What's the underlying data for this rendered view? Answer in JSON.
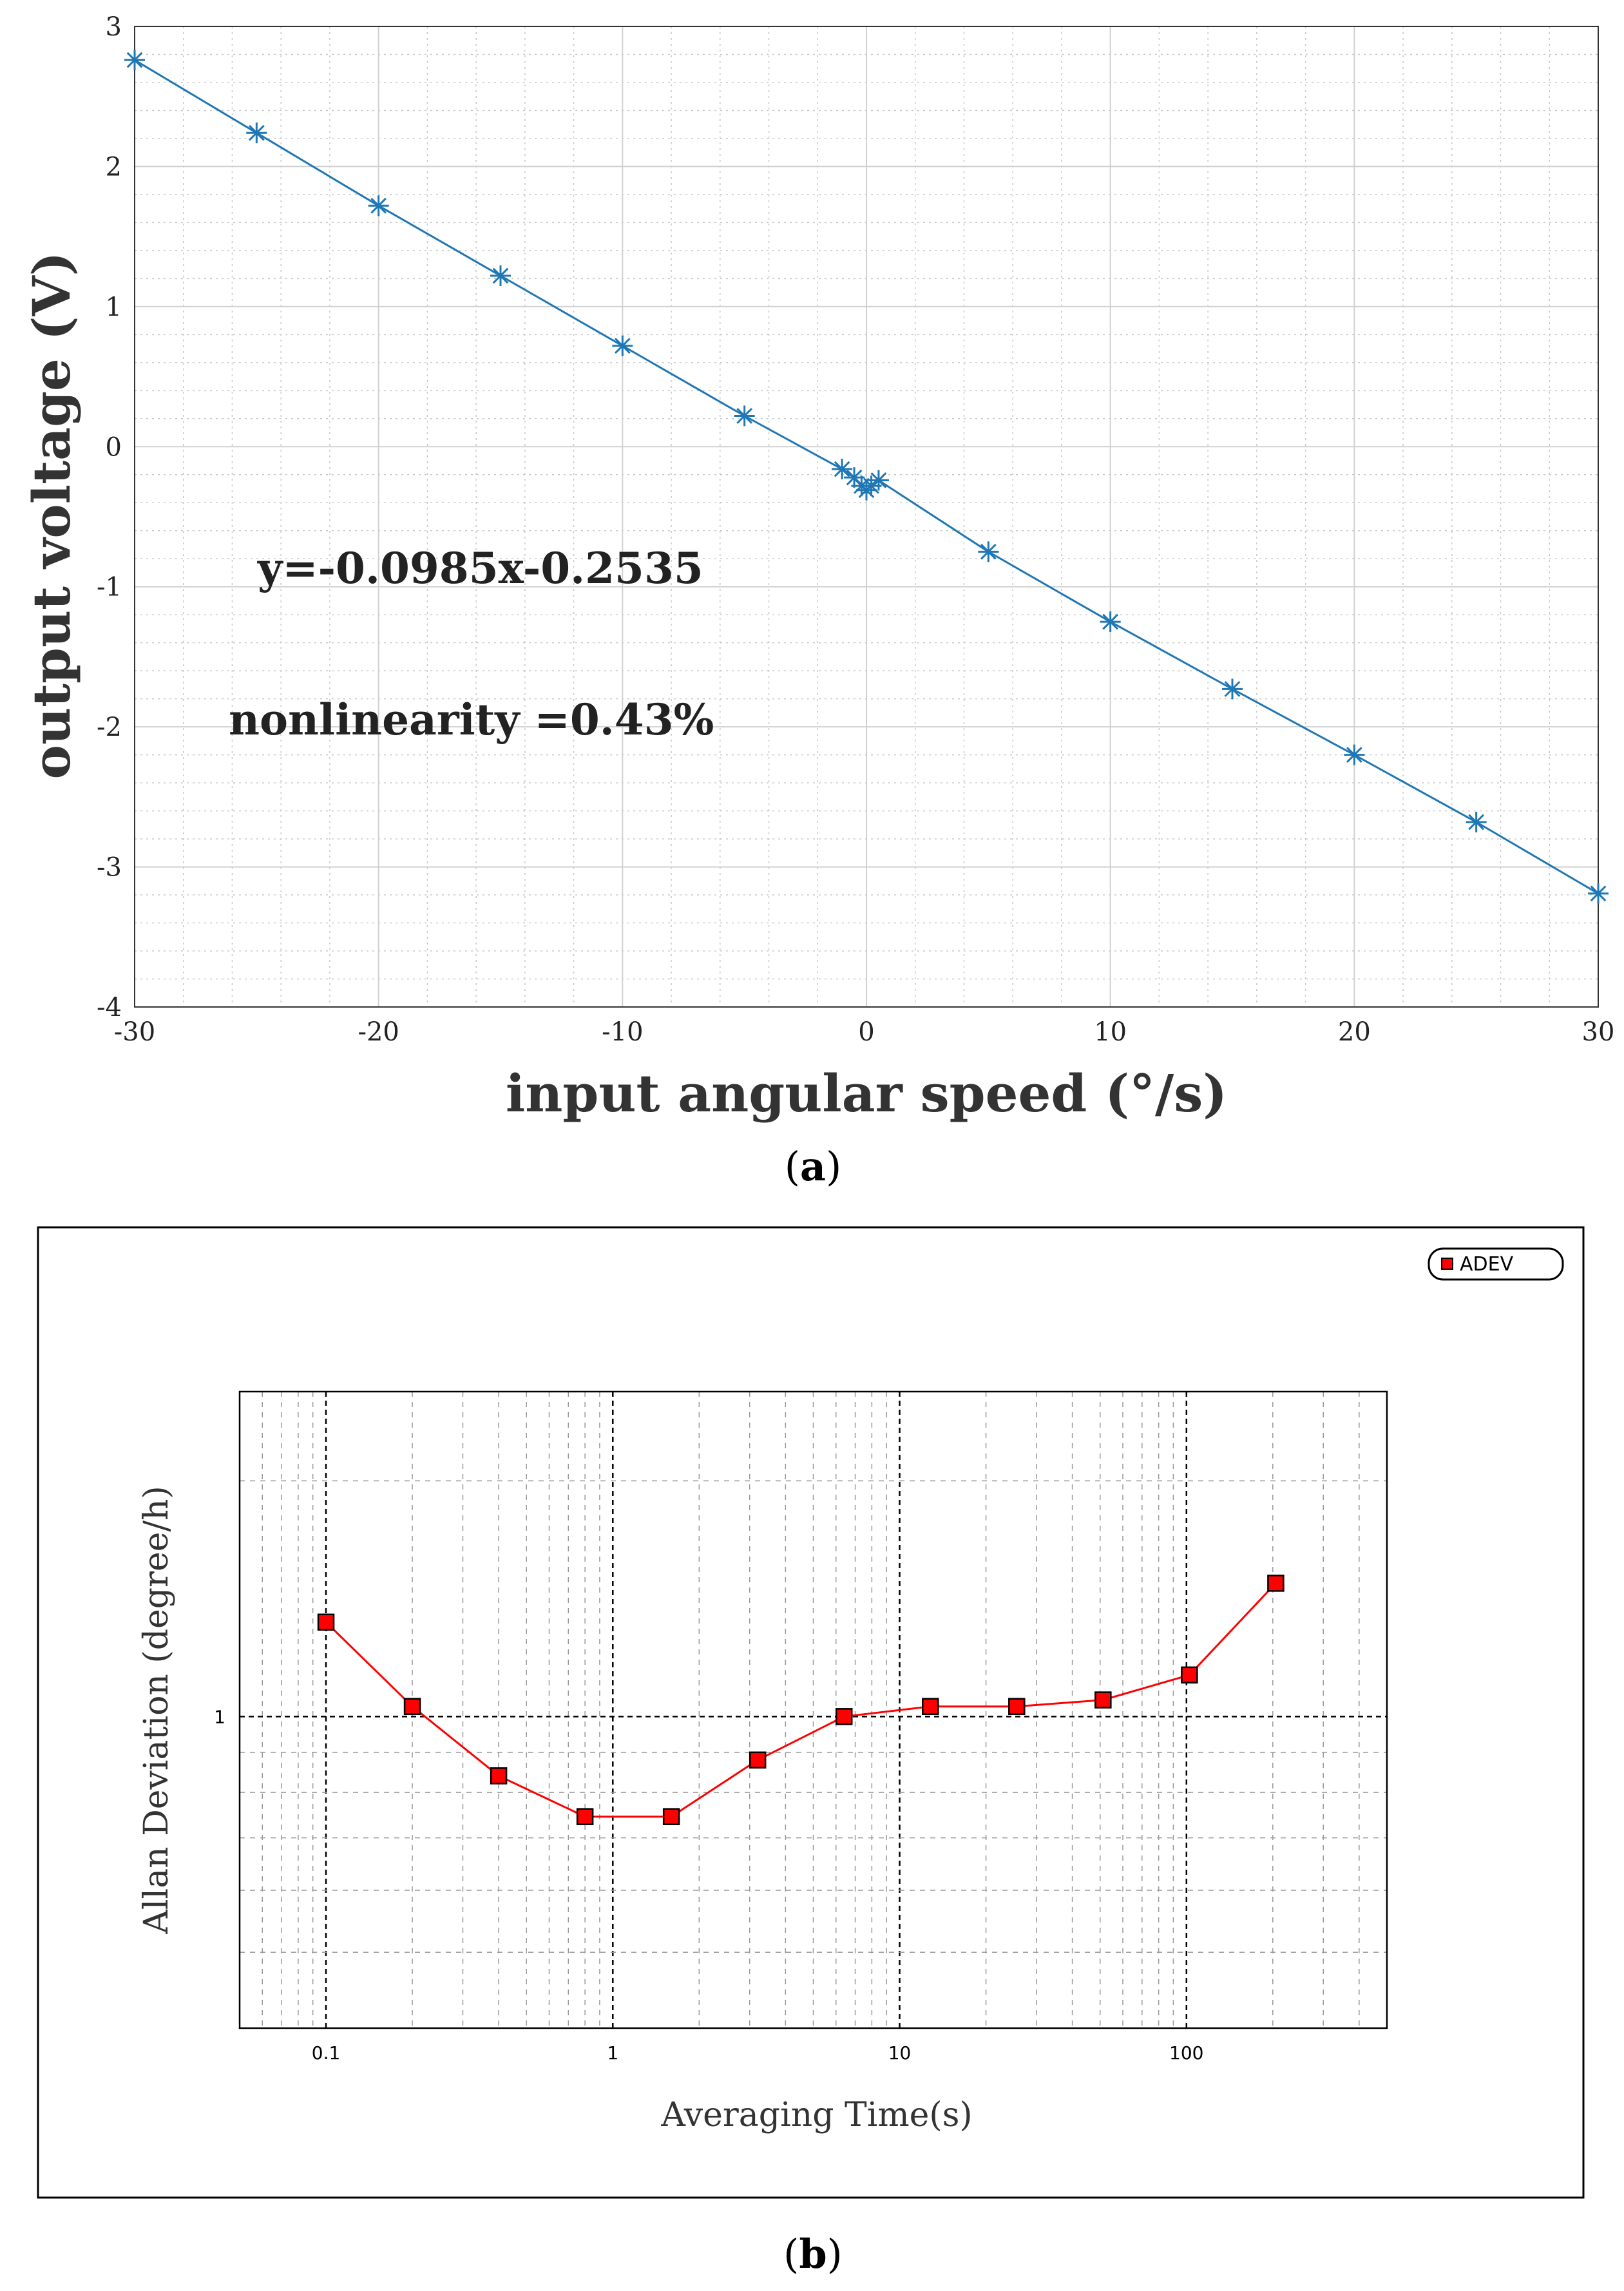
{
  "chart_data": [
    {
      "panel": "a",
      "type": "line",
      "xlabel": "input angular speed (°/s)",
      "ylabel": "output voltage (V)",
      "xlim": [
        -30,
        30
      ],
      "ylim": [
        -4,
        3
      ],
      "xticks": [
        -30,
        -20,
        -10,
        0,
        10,
        20,
        30
      ],
      "yticks": [
        3,
        2,
        1,
        0,
        -1,
        -2,
        -3,
        -4
      ],
      "grid": true,
      "marker": "asterisk",
      "color": "#1f77b4",
      "series": [
        {
          "name": "output voltage",
          "x": [
            -30,
            -25,
            -20,
            -15,
            -10,
            -5,
            -1,
            -0.5,
            -0.2,
            0,
            0.2,
            0.5,
            5,
            10,
            15,
            20,
            25,
            30
          ],
          "y": [
            2.76,
            2.24,
            1.72,
            1.22,
            0.72,
            0.22,
            -0.16,
            -0.22,
            -0.28,
            -0.31,
            -0.28,
            -0.24,
            -0.75,
            -1.25,
            -1.73,
            -2.2,
            -2.68,
            -3.19
          ]
        }
      ],
      "annotations": [
        "y=-0.0985x-0.2535",
        "nonlinearity =0.43%"
      ],
      "caption_label": "a"
    },
    {
      "panel": "b",
      "type": "line",
      "xscale": "log",
      "yscale": "log",
      "xlabel": "Averaging Time(s)",
      "ylabel": "Allan Deviation (degree/h)",
      "xlim": [
        0.05,
        500
      ],
      "ylim": [
        0.4,
        2.6
      ],
      "xticks": [
        0.1,
        1,
        10,
        100
      ],
      "xtick_labels": [
        "0.1",
        "1",
        "10",
        "100"
      ],
      "yticks": [
        1
      ],
      "ytick_labels": [
        "1"
      ],
      "grid": true,
      "marker": "square",
      "color": "#ff0000",
      "series": [
        {
          "name": "ADEV",
          "x": [
            0.1,
            0.2,
            0.4,
            0.8,
            1.6,
            3.2,
            6.4,
            12.8,
            25.6,
            51.2,
            102.4,
            204.8
          ],
          "y": [
            1.32,
            1.03,
            0.84,
            0.745,
            0.745,
            0.88,
            1.0,
            1.03,
            1.03,
            1.05,
            1.13,
            1.48
          ]
        }
      ],
      "legend": [
        "ADEV"
      ],
      "caption_label": "b"
    }
  ]
}
